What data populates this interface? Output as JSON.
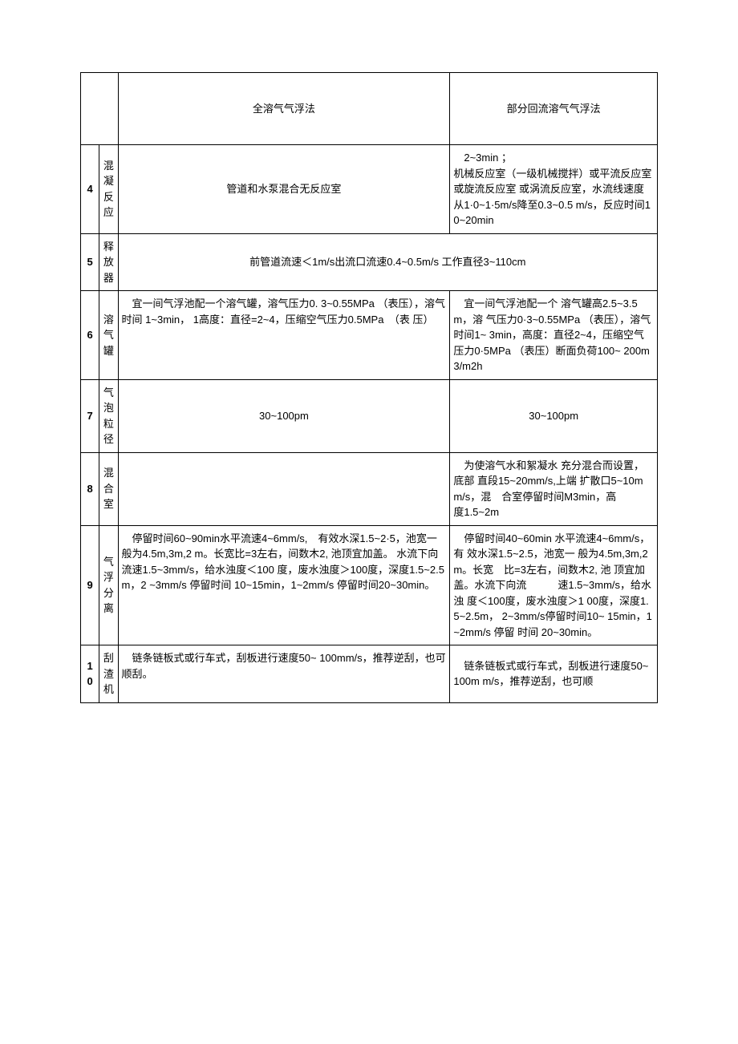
{
  "table": {
    "headers": {
      "blank": "",
      "method1": "全溶气气浮法",
      "method2": "部分回流溶气气浮法"
    },
    "rows": [
      {
        "num": "4",
        "name": "混凝反应",
        "m1": "管道和水泵混合无反应室",
        "m2": "　2~3min ；\n机械反应室（一级机械搅拌）或平流反应室或旋流反应室 或涡流反应室，水流线速度 从1·0~1·5m/s降至0.3~0.5 m/s，反应时间10~20min",
        "m1_align": "center"
      },
      {
        "num": "5",
        "name": "释放器",
        "merged": "前管道流速＜1m/s出流口流速0.4~0.5m/s 工作直径3~110cm",
        "merged_align": "center"
      },
      {
        "num": "6",
        "name": "溶气罐",
        "m1": "　宜一间气浮池配一个溶气罐，溶气压力0. 3~0.55MPa （表压），溶气时间 1~3min， 1高度：直径=2~4，压缩空气压力0.5MPa　（表 压）",
        "m2": "　宜一间气浮池配一个 溶气罐高2.5~3.5m，溶 气压力0·3~0.55MPa （表压），溶气时间1~ 3min，高度：直径2~4，压缩空气压力0·5MPa （表压）断面负荷100~ 200m3/m2h",
        "m1_valign": "top"
      },
      {
        "num": "7",
        "name": "气泡粒径",
        "m1": "30~100pm",
        "m2": "30~100pm",
        "m1_align": "center",
        "m2_align": "center"
      },
      {
        "num": "8",
        "name": "混合室",
        "m1": "",
        "m2": "　为使溶气水和絮凝水 充分混合而设置，底部 直段15~20mm/s,上端 扩散口5~10mm/s，混　合室停留时间M3min，高\n度1.5~2m"
      },
      {
        "num": "9",
        "name": "气浮 分离",
        "m1": "　停留时间60~90min水平流速4~6mm/s,　有效水深1.5~2·5，池宽一般为4.5m,3m,2 m。长宽比=3左右，间数木2, 池顶宜加盖。 水流下向流速1.5~3mm/s，给水浊度＜100 度，废水浊度＞100度，深度1.5~2.5m，2 ~3mm/s 停留时间 10~15min，1~2mm/s 停留时间20~30min。",
        "m2": "　停留时间40~60min 水平流速4~6mm/s，有 效水深1.5~2.5，池宽一 般为4.5m,3m,2m。长宽　比=3左右，间数木2, 池 顶宜加盖。水流下向流　　　速1.5~3mm/s，给水浊 度＜100度，废水浊度＞1 00度，深度1.5~2.5m， 2~3mm/s停留时间10~ 15min，1~2mm/s 停留 时间 20~30min。",
        "m1_valign": "top"
      },
      {
        "num": "10",
        "name": "刮渣机",
        "m1": "　链条链板式或行车式，刮板进行速度50~ 100mm/s，推荐逆刮，也可顺刮。",
        "m2": "　链条链板式或行车式，刮板进行速度50~100m m/s，推荐逆刮，也可顺",
        "m1_valign": "top"
      }
    ],
    "style": {
      "border_color": "#000000",
      "border_width": 1.5,
      "font_size": 13,
      "background": "#ffffff"
    }
  }
}
